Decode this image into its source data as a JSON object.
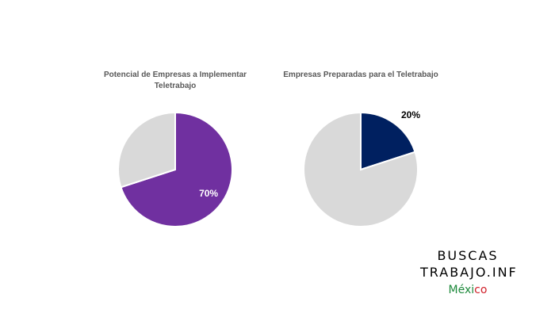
{
  "chart_data": [
    {
      "type": "pie",
      "title": "Potencial de Empresas a Implementar Teletrabajo",
      "values": [
        70,
        30
      ],
      "data_labels": [
        "70%",
        ""
      ],
      "colors": [
        "#7030a0",
        "#d9d9d9"
      ]
    },
    {
      "type": "pie",
      "title": "Empresas Preparadas para el Teletrabajo",
      "values": [
        20,
        80
      ],
      "data_labels": [
        "20%",
        ""
      ],
      "colors": [
        "#002060",
        "#d9d9d9"
      ]
    }
  ],
  "brand": {
    "line1": "BUSCAS",
    "line2": "TRABAJO.INF",
    "country_part1": "Méxi",
    "country_part2": "co",
    "colors": {
      "green": "#1e8a3c",
      "red": "#d0202a"
    }
  }
}
